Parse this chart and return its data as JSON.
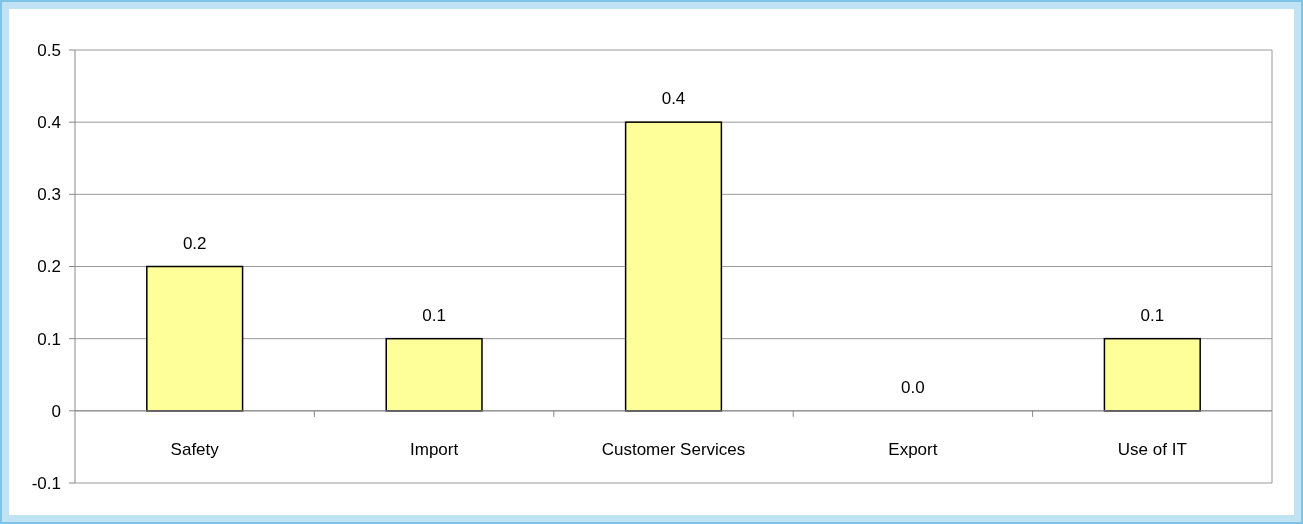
{
  "chart_data": {
    "type": "bar",
    "categories": [
      "Safety",
      "Import",
      "Customer Services",
      "Export",
      "Use of IT"
    ],
    "values": [
      0.2,
      0.1,
      0.4,
      0.0,
      0.1
    ],
    "value_labels": [
      "0.2",
      "0.1",
      "0.4",
      "0.0",
      "0.1"
    ],
    "color": "#ffff99",
    "ylim": [
      -0.1,
      0.5
    ],
    "yticks": [
      -0.1,
      0,
      0.1,
      0.2,
      0.3,
      0.4,
      0.5
    ],
    "grid": "y"
  }
}
